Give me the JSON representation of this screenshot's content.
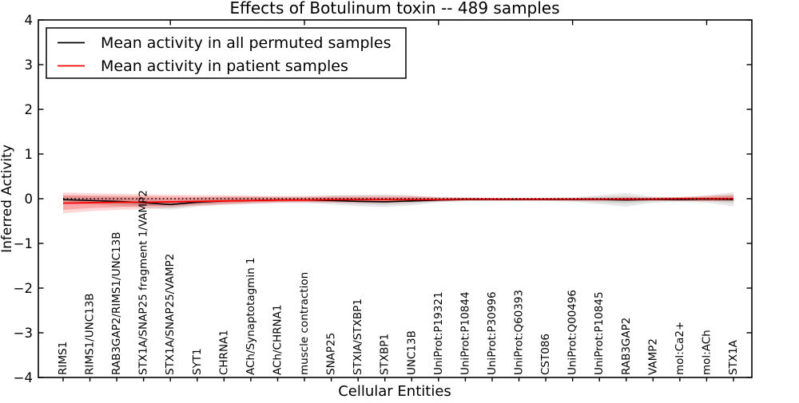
{
  "figure": {
    "title": "Effects of Botulinum toxin -- 489 samples",
    "xlabel": "Cellular Entities",
    "ylabel": "Inferred Activity",
    "background": "#ffffff"
  },
  "legend": {
    "position": "upper left",
    "items": [
      {
        "label": "Mean activity in all permuted samples",
        "color": "#000000"
      },
      {
        "label": "Mean activity in patient samples",
        "color": "#ff0000"
      }
    ]
  },
  "chart_data": {
    "type": "line",
    "title": "Effects of Botulinum toxin -- 489 samples",
    "xlabel": "Cellular Entities",
    "ylabel": "Inferred Activity",
    "ylim": [
      -4,
      4
    ],
    "yticks": [
      -4,
      -3,
      -2,
      -1,
      0,
      1,
      2,
      3,
      4
    ],
    "y_tick_labels": [
      "−4",
      "−3",
      "−2",
      "−1",
      "0",
      "1",
      "2",
      "3",
      "4"
    ],
    "x_top_tick_indices": [
      4,
      9,
      14,
      19,
      24
    ],
    "grid": false,
    "legend_position": "upper left",
    "categories": [
      "RIMS1",
      "RIMS1/UNC13B",
      "RAB3GAP2/RIMS1/UNC13B",
      "STX1A/SNAP25 fragment 1/VAMP2",
      "STX1A/SNAP25/VAMP2",
      "SYT1",
      "CHRNA1",
      "ACh/Synaptotagmin 1",
      "ACh/CHRNA1",
      "muscle contraction",
      "SNAP25",
      "STXIA/STXBP1",
      "STXBP1",
      "UNC13B",
      "UniProt:P19321",
      "UniProt:P10844",
      "UniProt:P30996",
      "UniProt:Q60393",
      "CST086",
      "UniProt:Q00496",
      "UniProt:P10845",
      "RAB3GAP2",
      "VAMP2",
      "mol:Ca2+",
      "mol:ACh",
      "STX1A"
    ],
    "series": [
      {
        "id": "permuted-mean-line",
        "name": "Mean activity in all permuted samples",
        "color": "#000000",
        "style": "solid",
        "width": 1.6,
        "values": [
          -0.02,
          -0.04,
          -0.06,
          -0.09,
          -0.13,
          -0.08,
          -0.05,
          -0.04,
          -0.03,
          -0.03,
          -0.04,
          -0.06,
          -0.07,
          -0.05,
          -0.03,
          -0.02,
          -0.02,
          -0.02,
          -0.02,
          -0.02,
          -0.02,
          -0.03,
          -0.02,
          -0.02,
          -0.01,
          -0.02
        ]
      },
      {
        "id": "patient-mean-line",
        "name": "Mean activity in patient samples",
        "color": "#ff0000",
        "style": "solid",
        "width": 1.8,
        "values": [
          -0.1,
          -0.09,
          -0.08,
          -0.08,
          -0.07,
          -0.06,
          -0.05,
          -0.04,
          -0.03,
          -0.03,
          -0.02,
          -0.02,
          -0.02,
          -0.02,
          -0.02,
          -0.01,
          -0.01,
          -0.01,
          -0.01,
          -0.01,
          -0.01,
          -0.01,
          -0.01,
          0,
          0,
          0
        ]
      },
      {
        "id": "zero-reference-line",
        "name": "zero reference",
        "color": "#000000",
        "style": "dotted",
        "width": 1.5,
        "constant": 0
      }
    ],
    "bands": [
      {
        "id": "permuted-spread-outer",
        "name": "permuted samples spread (outer)",
        "color": "rgba(0,0,0,0.09)",
        "upper": [
          0.07,
          0.06,
          0.05,
          0.03,
          0.0,
          0.03,
          0.05,
          0.05,
          0.05,
          0.05,
          0.07,
          0.09,
          0.1,
          0.08,
          0.03,
          0.02,
          0.02,
          0.02,
          0.02,
          0.03,
          0.08,
          0.13,
          0.05,
          0.03,
          0.07,
          0.15
        ],
        "lower": [
          -0.1,
          -0.13,
          -0.16,
          -0.2,
          -0.25,
          -0.18,
          -0.14,
          -0.12,
          -0.1,
          -0.1,
          -0.13,
          -0.17,
          -0.19,
          -0.15,
          -0.08,
          -0.06,
          -0.05,
          -0.05,
          -0.05,
          -0.07,
          -0.12,
          -0.18,
          -0.09,
          -0.07,
          -0.09,
          -0.17
        ]
      },
      {
        "id": "permuted-spread-inner",
        "name": "permuted samples spread (inner)",
        "color": "rgba(0,0,0,0.09)",
        "upper": [
          0.03,
          0.02,
          0.0,
          -0.02,
          -0.06,
          -0.02,
          0.0,
          0.01,
          0.01,
          0.01,
          0.02,
          0.02,
          0.02,
          0.02,
          0.0,
          0.0,
          0.0,
          0.0,
          0.0,
          0.01,
          0.04,
          0.06,
          0.02,
          0.01,
          0.03,
          0.07
        ],
        "lower": [
          -0.06,
          -0.09,
          -0.12,
          -0.15,
          -0.2,
          -0.14,
          -0.1,
          -0.08,
          -0.07,
          -0.07,
          -0.09,
          -0.12,
          -0.14,
          -0.11,
          -0.06,
          -0.04,
          -0.04,
          -0.04,
          -0.04,
          -0.05,
          -0.08,
          -0.11,
          -0.06,
          -0.05,
          -0.05,
          -0.1
        ]
      },
      {
        "id": "patient-spread-outer",
        "name": "patient samples spread (outer)",
        "color": "rgba(255,0,0,0.16)",
        "upper": [
          0.14,
          0.12,
          0.11,
          0.1,
          0.09,
          0.08,
          0.08,
          0.07,
          0.06,
          0.06,
          0.07,
          0.07,
          0.07,
          0.06,
          0.04,
          0.03,
          0.02,
          0.02,
          0.02,
          0.02,
          0.02,
          0.03,
          0.03,
          0.04,
          0.07,
          0.1
        ],
        "lower": [
          -0.33,
          -0.28,
          -0.25,
          -0.23,
          -0.2,
          -0.16,
          -0.13,
          -0.11,
          -0.09,
          -0.08,
          -0.09,
          -0.1,
          -0.1,
          -0.08,
          -0.06,
          -0.04,
          -0.04,
          -0.04,
          -0.04,
          -0.04,
          -0.04,
          -0.04,
          -0.04,
          -0.05,
          -0.06,
          -0.05
        ]
      },
      {
        "id": "patient-spread-inner",
        "name": "patient samples spread (inner)",
        "color": "rgba(230,0,0,0.22)",
        "upper": [
          0.08,
          0.07,
          0.06,
          0.06,
          0.05,
          0.04,
          0.04,
          0.04,
          0.03,
          0.03,
          0.04,
          0.04,
          0.04,
          0.04,
          0.02,
          0.02,
          0.01,
          0.01,
          0.01,
          0.01,
          0.01,
          0.02,
          0.02,
          0.03,
          0.04,
          0.06
        ],
        "lower": [
          -0.25,
          -0.21,
          -0.19,
          -0.17,
          -0.15,
          -0.12,
          -0.1,
          -0.08,
          -0.07,
          -0.06,
          -0.07,
          -0.07,
          -0.07,
          -0.06,
          -0.04,
          -0.03,
          -0.03,
          -0.03,
          -0.03,
          -0.03,
          -0.03,
          -0.03,
          -0.03,
          -0.04,
          -0.04,
          -0.04
        ]
      }
    ]
  }
}
